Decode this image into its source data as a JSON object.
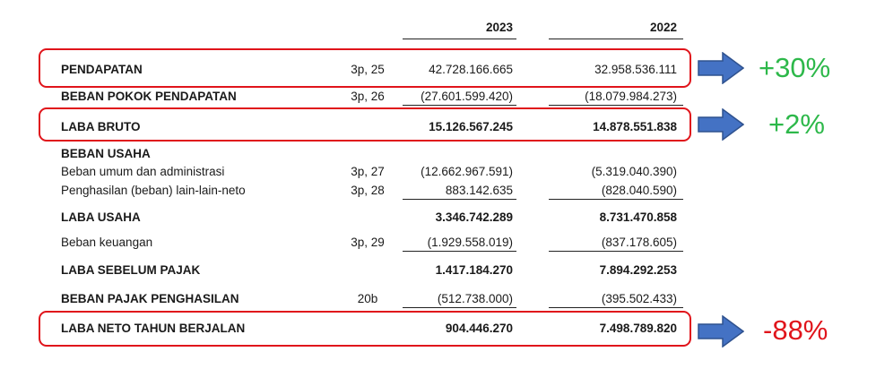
{
  "header": {
    "year1": "2023",
    "year2": "2022"
  },
  "rows": {
    "pendapatan": {
      "label": "PENDAPATAN",
      "note": "3p, 25",
      "v2023": "42.728.166.665",
      "v2022": "32.958.536.111"
    },
    "beban_pokok": {
      "label": "BEBAN POKOK PENDAPATAN",
      "note": "3p, 26",
      "v2023": "(27.601.599.420)",
      "v2022": "(18.079.984.273)"
    },
    "laba_bruto": {
      "label": "LABA BRUTO",
      "v2023": "15.126.567.245",
      "v2022": "14.878.551.838"
    },
    "beban_usaha": {
      "label": "BEBAN USAHA"
    },
    "beban_umum": {
      "label": "Beban umum dan administrasi",
      "note": "3p, 27",
      "v2023": "(12.662.967.591)",
      "v2022": "(5.319.040.390)"
    },
    "penghasilan_lain": {
      "label": "Penghasilan (beban) lain-lain-neto",
      "note": "3p, 28",
      "v2023": "883.142.635",
      "v2022": "(828.040.590)"
    },
    "laba_usaha": {
      "label": "LABA USAHA",
      "v2023": "3.346.742.289",
      "v2022": "8.731.470.858"
    },
    "beban_keuangan": {
      "label": "Beban keuangan",
      "note": "3p, 29",
      "v2023": "(1.929.558.019)",
      "v2022": "(837.178.605)"
    },
    "laba_sebelum_pajak": {
      "label": "LABA SEBELUM PAJAK",
      "v2023": "1.417.184.270",
      "v2022": "7.894.292.253"
    },
    "beban_pajak": {
      "label": "BEBAN PAJAK PENGHASILAN",
      "note": "20b",
      "v2023": "(512.738.000)",
      "v2022": "(395.502.433)"
    },
    "laba_neto": {
      "label": "LABA NETO TAHUN BERJALAN",
      "v2023": "904.446.270",
      "v2022": "7.498.789.820"
    }
  },
  "annotations": {
    "pendapatan_change": "+30%",
    "laba_bruto_change": "+2%",
    "laba_neto_change": "-88%"
  },
  "colors": {
    "highlight_box": "#e0141b",
    "arrow_fill": "#4472c4",
    "arrow_stroke": "#2f528f",
    "positive": "#2db84a",
    "negative": "#e0141b"
  },
  "icons": {
    "arrow": "right-arrow-icon"
  }
}
